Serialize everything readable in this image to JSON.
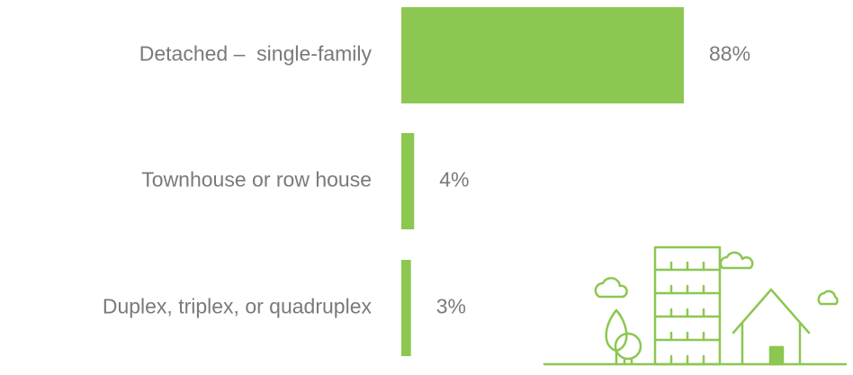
{
  "chart_data": {
    "type": "bar",
    "orientation": "horizontal",
    "categories": [
      "Detached –  single-family",
      "Townhouse or row house",
      "Duplex, triplex, or quadruplex"
    ],
    "values": [
      88,
      4,
      3
    ],
    "value_labels": [
      "88%",
      "4%",
      "3%"
    ],
    "color": "#8cc751"
  }
}
